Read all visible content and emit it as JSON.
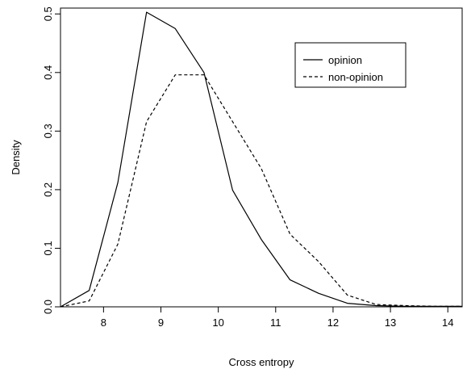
{
  "chart_data": {
    "type": "line",
    "title": "",
    "xlabel": "Cross entropy",
    "ylabel": "Density",
    "xlim": [
      7.25,
      14.25
    ],
    "ylim": [
      0.0,
      0.51
    ],
    "xticks": [
      8,
      9,
      10,
      11,
      12,
      13,
      14
    ],
    "yticks": [
      0.0,
      0.1,
      0.2,
      0.3,
      0.4,
      0.5
    ],
    "ytick_labels": [
      "0.0",
      "0.1",
      "0.2",
      "0.3",
      "0.4",
      "0.5"
    ],
    "grid": false,
    "legend": "top-right",
    "series": [
      {
        "name": "opinion",
        "style": "solid",
        "x": [
          7.25,
          7.75,
          8.25,
          8.75,
          9.25,
          9.75,
          10.25,
          10.75,
          11.25,
          11.75,
          12.25,
          12.75,
          13.25,
          13.75,
          14.25
        ],
        "y": [
          0.0,
          0.028,
          0.212,
          0.503,
          0.475,
          0.4,
          0.199,
          0.115,
          0.046,
          0.023,
          0.006,
          0.002,
          0.001,
          0.001,
          0.001
        ]
      },
      {
        "name": "non-opinion",
        "style": "dashed",
        "x": [
          7.25,
          7.75,
          8.25,
          8.75,
          9.25,
          9.75,
          10.25,
          10.75,
          11.25,
          11.75,
          12.25,
          12.75,
          13.25,
          13.75,
          14.25
        ],
        "y": [
          0.0,
          0.01,
          0.107,
          0.316,
          0.396,
          0.396,
          0.316,
          0.236,
          0.124,
          0.077,
          0.02,
          0.004,
          0.002,
          0.001,
          0.001
        ]
      }
    ]
  }
}
